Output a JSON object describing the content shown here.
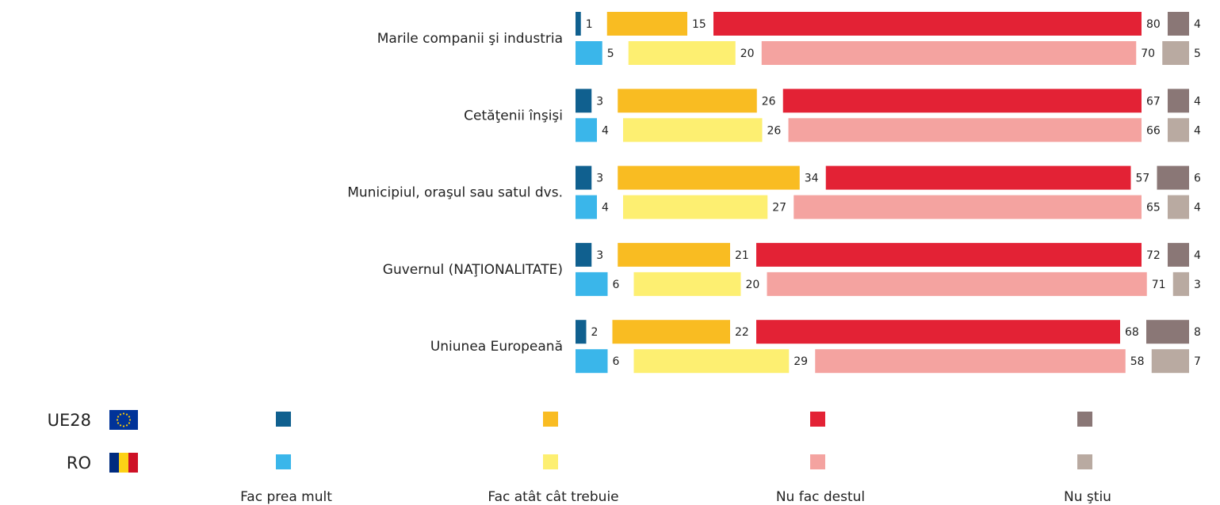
{
  "chart_data": {
    "type": "bar",
    "categories": [
      "Marile companii şi industria",
      "Cetăţenii înşişi",
      "Municipiul, oraşul sau satul dvs.",
      "Guvernul (NAŢIONALITATE)",
      "Uniunea Europeană"
    ],
    "series": [
      {
        "group": "UE28",
        "name": "Fac prea mult",
        "color": "#10608f",
        "values": [
          1,
          3,
          3,
          3,
          2
        ]
      },
      {
        "group": "UE28",
        "name": "Fac atât cât trebuie",
        "color": "#f9bc22",
        "values": [
          15,
          26,
          34,
          21,
          22
        ]
      },
      {
        "group": "UE28",
        "name": "Nu fac destul",
        "color": "#e32235",
        "values": [
          80,
          67,
          57,
          72,
          68
        ]
      },
      {
        "group": "UE28",
        "name": "Nu ştiu",
        "color": "#8a7776",
        "values": [
          4,
          4,
          6,
          4,
          8
        ]
      },
      {
        "group": "RO",
        "name": "Fac prea mult",
        "color": "#3ab6ea",
        "values": [
          5,
          4,
          4,
          6,
          6
        ]
      },
      {
        "group": "RO",
        "name": "Fac atât cât trebuie",
        "color": "#fdef71",
        "values": [
          20,
          26,
          27,
          20,
          29
        ]
      },
      {
        "group": "RO",
        "name": "Nu fac destul",
        "color": "#f4a3a0",
        "values": [
          70,
          66,
          65,
          71,
          58
        ]
      },
      {
        "group": "RO",
        "name": "Nu ştiu",
        "color": "#b9aaa1",
        "values": [
          5,
          4,
          4,
          3,
          7
        ]
      }
    ]
  }
}
